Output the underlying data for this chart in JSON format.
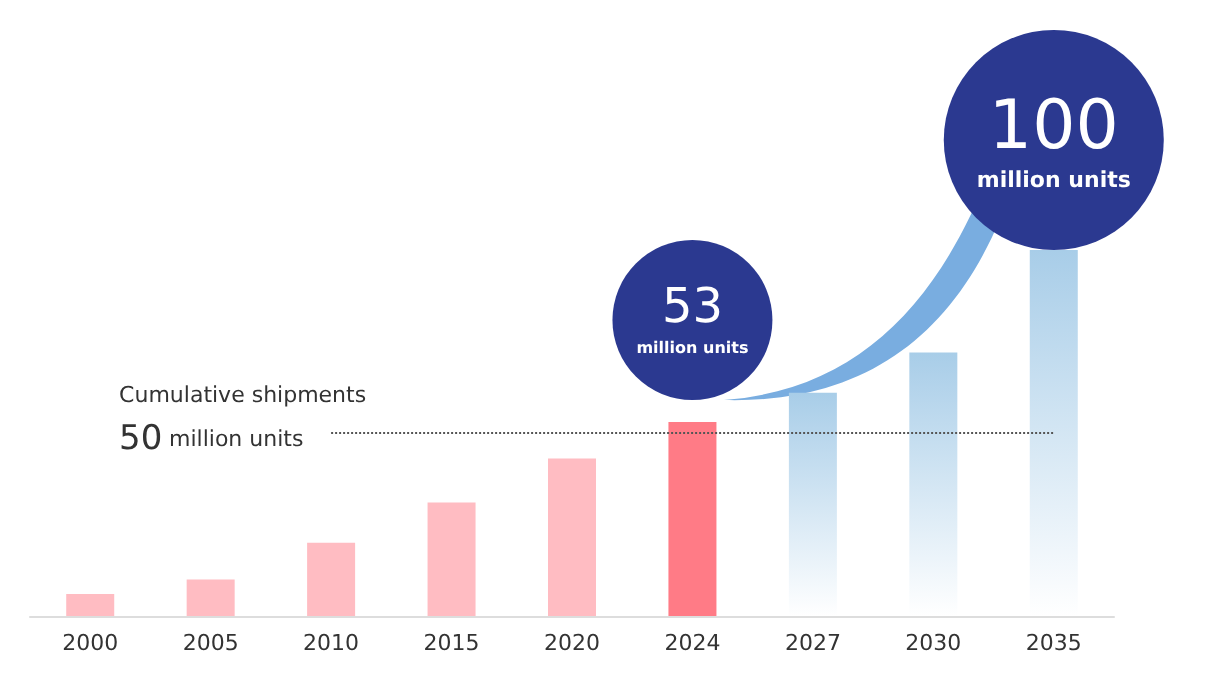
{
  "chart_data": {
    "type": "bar",
    "ylim": [
      0,
      100
    ],
    "tick_labels": "x",
    "categories": [
      "2000",
      "2005",
      "2010",
      "2015",
      "2020",
      "2024",
      "2027",
      "2030",
      "2035"
    ],
    "values": [
      6,
      10,
      20,
      31,
      43,
      53,
      61,
      72,
      100
    ],
    "colors": [
      "#ffbcc2",
      "#ffbcc2",
      "#ffbcc2",
      "#ffbcc2",
      "#ffbcc2",
      "#ff7b86",
      "#a8cde8",
      "#a8cde8",
      "#a8cde8"
    ],
    "value_labels": [
      null,
      null,
      null,
      null,
      null,
      "53 million units",
      null,
      null,
      "100 million units"
    ],
    "ref_lines": [
      {
        "axis": "y",
        "value": 50,
        "label": "Cumulative shipments\n50 million units",
        "line_style": "dotted",
        "color": "#555555"
      }
    ]
  }
}
